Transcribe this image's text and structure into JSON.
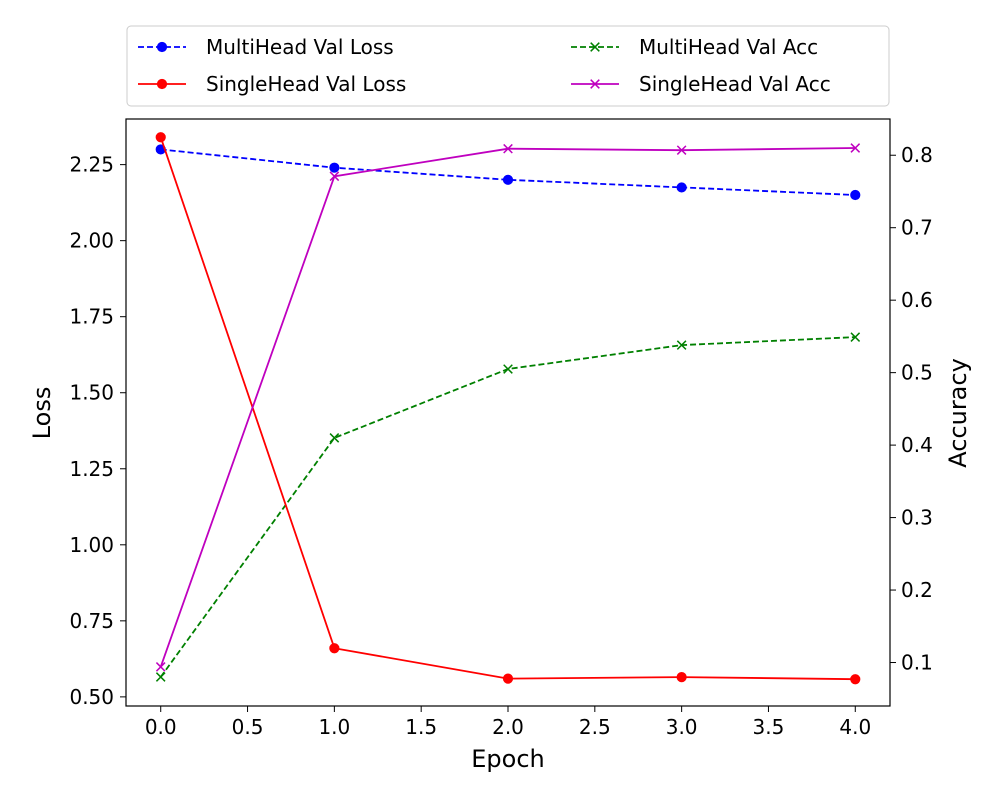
{
  "chart_data": {
    "type": "line",
    "xlabel": "Epoch",
    "ylabel_left": "Loss",
    "ylabel_right": "Accuracy",
    "x": [
      0.0,
      1.0,
      2.0,
      3.0,
      4.0
    ],
    "xlim": [
      -0.2,
      4.2
    ],
    "ylim_left": [
      0.47,
      2.4
    ],
    "ylim_right": [
      0.04,
      0.85
    ],
    "xticks": [
      "0.0",
      "0.5",
      "1.0",
      "1.5",
      "2.0",
      "2.5",
      "3.0",
      "3.5",
      "4.0"
    ],
    "yticks_left": [
      "0.50",
      "0.75",
      "1.00",
      "1.25",
      "1.50",
      "1.75",
      "2.00",
      "2.25"
    ],
    "yticks_right": [
      "0.1",
      "0.2",
      "0.3",
      "0.4",
      "0.5",
      "0.6",
      "0.7",
      "0.8"
    ],
    "grid": false,
    "legend_position": "top",
    "series": [
      {
        "name": "MultiHead Val Loss",
        "axis": "left",
        "values": [
          2.3,
          2.24,
          2.2,
          2.175,
          2.15
        ],
        "color": "#0000ff",
        "dash": "dashed",
        "marker": "circle"
      },
      {
        "name": "MultiHead Val Acc",
        "axis": "right",
        "values": [
          0.08,
          0.41,
          0.505,
          0.538,
          0.549
        ],
        "color": "#008000",
        "dash": "dashed",
        "marker": "x"
      },
      {
        "name": "SingleHead Val Loss",
        "axis": "left",
        "values": [
          2.34,
          0.66,
          0.56,
          0.565,
          0.558
        ],
        "color": "#ff0000",
        "dash": "solid",
        "marker": "circle"
      },
      {
        "name": "SingleHead Val Acc",
        "axis": "right",
        "values": [
          0.094,
          0.771,
          0.809,
          0.807,
          0.81
        ],
        "color": "#bf00bf",
        "dash": "solid",
        "marker": "x"
      }
    ]
  }
}
